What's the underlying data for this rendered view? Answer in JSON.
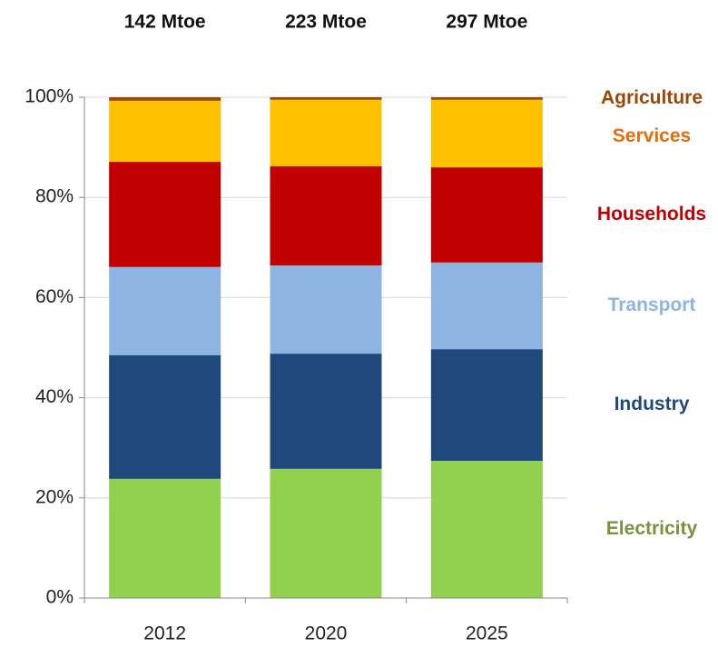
{
  "chart_data": {
    "type": "stacked_bar_100",
    "bar_labels": [
      "142 Mtoe",
      "223 Mtoe",
      "297 Mtoe"
    ],
    "categories": [
      "2012",
      "2020",
      "2025"
    ],
    "series": [
      {
        "name": "Electricity",
        "color": "#92d050",
        "label_color": "#77933c",
        "values": [
          23.8,
          25.8,
          27.4
        ]
      },
      {
        "name": "Industry",
        "color": "#1f497d",
        "label_color": "#1f497d",
        "values": [
          24.7,
          23.0,
          22.3
        ]
      },
      {
        "name": "Transport",
        "color": "#8eb4e3",
        "label_color": "#8eb4e3",
        "values": [
          17.6,
          17.6,
          17.3
        ]
      },
      {
        "name": "Households",
        "color": "#c00000",
        "label_color": "#c00000",
        "values": [
          21.0,
          19.8,
          19.0
        ]
      },
      {
        "name": "Services",
        "color": "#ffc000",
        "label_color": "#e46c0a",
        "values": [
          12.2,
          13.3,
          13.5
        ]
      },
      {
        "name": "Agriculture",
        "color": "#984807",
        "label_color": "#984807",
        "values": [
          0.7,
          0.5,
          0.5
        ]
      }
    ],
    "ylim": [
      0,
      100
    ],
    "yticks": [
      {
        "value": 0,
        "label": "0%"
      },
      {
        "value": 20,
        "label": "20%"
      },
      {
        "value": 40,
        "label": "40%"
      },
      {
        "value": 60,
        "label": "60%"
      },
      {
        "value": 80,
        "label": "80%"
      },
      {
        "value": 100,
        "label": "100%"
      }
    ],
    "grid": true
  }
}
